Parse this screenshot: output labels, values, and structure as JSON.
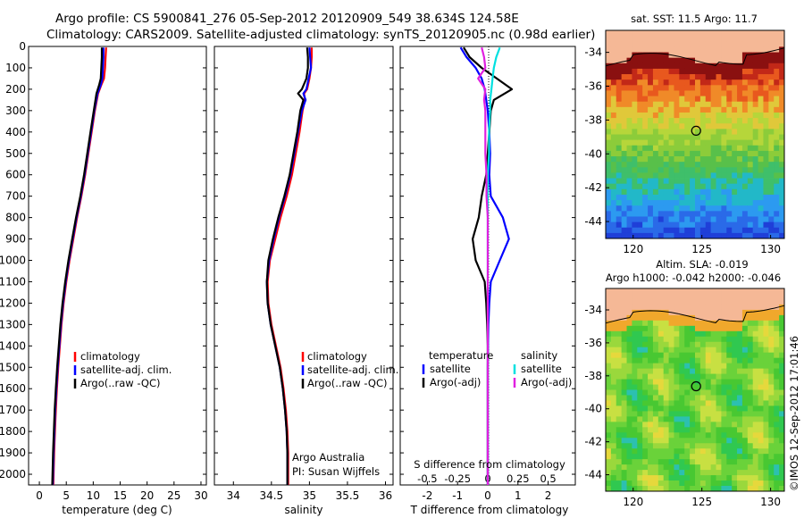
{
  "header": {
    "line1": "Argo profile: CS 5900841_276 05-Sep-2012 20120909_549 38.634S 124.58E",
    "line2": "Climatology: CARS2009. Satellite-adjusted climatology: synTS_20120905.nc (0.98d earlier)"
  },
  "colors": {
    "climatology": "#ff0000",
    "satellite": "#0000ff",
    "argo": "#000000",
    "sat_salinity": "#00e0e0",
    "argo_salinity": "#e020e0",
    "land": "#f5b896"
  },
  "chart_data": [
    {
      "type": "line",
      "id": "temperature",
      "xlabel": "temperature (deg C)",
      "ylabel": "",
      "xlim": [
        -2,
        31
      ],
      "ylim": [
        2050,
        0
      ],
      "xticks": [
        0,
        5,
        10,
        15,
        20,
        25,
        30
      ],
      "xtick_labels": [
        "0",
        "5",
        "10",
        "15",
        "20",
        "25",
        "30"
      ],
      "yticks": [
        0,
        100,
        200,
        300,
        400,
        500,
        600,
        700,
        800,
        900,
        1000,
        1100,
        1200,
        1300,
        1400,
        1500,
        1600,
        1700,
        1800,
        1900,
        2000
      ],
      "ytick_labels": [
        "0",
        "100",
        "200",
        "300",
        "400",
        "500",
        "600",
        "700",
        "800",
        "900",
        "1000",
        "1100",
        "1200",
        "1300",
        "1400",
        "1500",
        "1600",
        "1700",
        "1800",
        "1900",
        "2000"
      ],
      "depth": [
        5,
        50,
        100,
        150,
        180,
        220,
        300,
        400,
        500,
        600,
        700,
        800,
        900,
        1000,
        1100,
        1200,
        1300,
        1400,
        1500,
        1600,
        1700,
        1800,
        1900,
        2000,
        2050
      ],
      "series": [
        {
          "name": "climatology",
          "color": "#ff0000",
          "values": [
            12.4,
            12.3,
            12.2,
            12.0,
            11.5,
            10.9,
            10.3,
            9.7,
            9.1,
            8.5,
            7.8,
            7.0,
            6.3,
            5.6,
            5.0,
            4.5,
            4.1,
            3.8,
            3.5,
            3.25,
            3.05,
            2.9,
            2.75,
            2.65,
            2.6
          ]
        },
        {
          "name": "satellite-adj. clim.",
          "color": "#0000ff",
          "values": [
            11.9,
            11.9,
            11.8,
            11.7,
            11.4,
            10.8,
            10.2,
            9.6,
            9.0,
            8.4,
            7.7,
            6.9,
            6.2,
            5.5,
            4.9,
            4.4,
            4.0,
            3.7,
            3.4,
            3.15,
            2.95,
            2.8,
            2.65,
            2.55,
            2.5
          ]
        },
        {
          "name": "Argo(..raw -QC)",
          "color": "#000000",
          "values": [
            11.6,
            11.6,
            11.5,
            11.4,
            11.1,
            10.6,
            10.1,
            9.5,
            8.9,
            8.3,
            7.6,
            6.8,
            6.1,
            5.4,
            4.8,
            4.3,
            3.9,
            3.6,
            3.3,
            3.05,
            2.85,
            2.7,
            2.55,
            2.45,
            2.4
          ]
        }
      ],
      "legend": [
        "climatology",
        "satellite-adj. clim.",
        "Argo(..raw -QC)"
      ]
    },
    {
      "type": "line",
      "id": "salinity",
      "xlabel": "salinity",
      "xlim": [
        33.75,
        36.1
      ],
      "ylim": [
        2050,
        0
      ],
      "xticks": [
        34,
        34.5,
        35,
        35.5,
        36
      ],
      "xtick_labels": [
        "34",
        "34.5",
        "35",
        "35.5",
        "36"
      ],
      "depth": [
        5,
        50,
        100,
        150,
        200,
        220,
        250,
        300,
        400,
        500,
        600,
        700,
        800,
        900,
        1000,
        1100,
        1200,
        1300,
        1400,
        1500,
        1600,
        1700,
        1800,
        1900,
        2000,
        2050
      ],
      "series": [
        {
          "name": "climatology",
          "color": "#ff0000",
          "values": [
            35.03,
            35.03,
            35.02,
            35.0,
            34.97,
            34.93,
            34.94,
            34.91,
            34.87,
            34.82,
            34.77,
            34.7,
            34.62,
            34.55,
            34.48,
            34.45,
            34.46,
            34.5,
            34.56,
            34.62,
            34.66,
            34.69,
            34.71,
            34.72,
            34.72,
            34.72
          ]
        },
        {
          "name": "satellite-adj. clim.",
          "color": "#0000ff",
          "values": [
            35.0,
            35.01,
            35.02,
            34.99,
            34.96,
            34.92,
            34.95,
            34.9,
            34.85,
            34.8,
            34.75,
            34.68,
            34.6,
            34.53,
            34.47,
            34.44,
            34.45,
            34.49,
            34.55,
            34.61,
            34.65,
            34.68,
            34.7,
            34.71,
            34.71,
            34.71
          ]
        },
        {
          "name": "Argo(..raw -QC)",
          "color": "#000000",
          "values": [
            34.97,
            34.98,
            34.98,
            34.96,
            34.9,
            34.85,
            34.92,
            34.88,
            34.84,
            34.79,
            34.74,
            34.67,
            34.59,
            34.52,
            34.46,
            34.44,
            34.45,
            34.49,
            34.55,
            34.61,
            34.65,
            34.68,
            34.7,
            34.71,
            34.71,
            34.71
          ]
        }
      ],
      "legend": [
        "climatology",
        "satellite-adj. clim.",
        "Argo(..raw -QC)"
      ],
      "annotation": [
        "Argo Australia",
        "PI: Susan Wijffels"
      ]
    },
    {
      "type": "line",
      "id": "difference",
      "xlabel": "T difference from climatology",
      "xlabel_top": "S difference from climatology",
      "xlim": [
        -2.9,
        2.9
      ],
      "ylim": [
        2050,
        0
      ],
      "xticks": [
        -2,
        -1,
        0,
        1,
        2
      ],
      "xtick_labels": [
        "-2",
        "-1",
        "0",
        "1",
        "2"
      ],
      "top_ticks_labels": [
        "-0.5",
        "-0.25",
        "0",
        "0.25",
        "0.5"
      ],
      "top_ticks_values": [
        -0.5,
        -0.25,
        0,
        0.25,
        0.5
      ],
      "s_scale_factor": 4,
      "depth": [
        5,
        50,
        100,
        150,
        200,
        250,
        300,
        400,
        500,
        600,
        700,
        800,
        900,
        1000,
        1100,
        1200,
        1300,
        1400,
        1500,
        1600,
        1700,
        1800,
        1900,
        2000,
        2050
      ],
      "series": [
        {
          "name": "temperature satellite",
          "color": "#0000ff",
          "values": [
            -0.9,
            -0.7,
            -0.4,
            -0.2,
            -0.1,
            -0.05,
            0,
            0.05,
            0.08,
            0.05,
            0.1,
            0.5,
            0.7,
            0.4,
            0.1,
            0.05,
            0.02,
            0.01,
            0.0,
            0.0,
            0.0,
            0.0,
            0.0,
            0.0,
            0.0
          ]
        },
        {
          "name": "temperature Argo(-adj)",
          "color": "#000000",
          "values": [
            -0.8,
            -0.6,
            -0.2,
            0.3,
            0.8,
            0.2,
            0.1,
            0.05,
            0.0,
            -0.05,
            -0.2,
            -0.3,
            -0.5,
            -0.4,
            -0.1,
            -0.05,
            -0.02,
            0.0,
            0.0,
            0.0,
            0.0,
            0.0,
            0.0,
            0.0,
            0.0
          ]
        },
        {
          "name": "salinity satellite",
          "color": "#00e0e0",
          "values": [
            0.1,
            0.07,
            0.05,
            0.04,
            0.03,
            0.02,
            0.02,
            0.01,
            0.01,
            0.0,
            0.0,
            0.0,
            0.0,
            0.0,
            0.0,
            0.0,
            0.0,
            0.0,
            0.0,
            0.0,
            0.0,
            0.0,
            0.0,
            0.0,
            0.0
          ]
        },
        {
          "name": "salinity Argo(-adj)",
          "color": "#e020e0",
          "values": [
            -0.05,
            -0.03,
            -0.02,
            -0.08,
            -0.02,
            -0.03,
            -0.02,
            -0.02,
            -0.02,
            -0.01,
            -0.01,
            0.0,
            0.0,
            0.0,
            0.0,
            0.0,
            0.0,
            0.0,
            0.0,
            0.0,
            0.0,
            0.0,
            0.0,
            0.0,
            0.0
          ]
        }
      ],
      "legend_headers": [
        "temperature",
        "salinity"
      ],
      "legend": [
        "satellite",
        "Argo(-adj)",
        "satellite",
        "Argo(-adj)"
      ]
    },
    {
      "type": "heatmap",
      "id": "sst_map",
      "title": "sat. SST: 11.5  Argo: 11.7",
      "xlim": [
        118,
        131
      ],
      "ylim": [
        -45,
        -32.7
      ],
      "xticks": [
        120,
        125,
        130
      ],
      "xtick_labels": [
        "120",
        "125",
        "130"
      ],
      "yticks": [
        -34,
        -36,
        -38,
        -40,
        -42,
        -44
      ],
      "ytick_labels": [
        "-34",
        "-36",
        "-38",
        "-40",
        "-42",
        "-44"
      ],
      "float_position": [
        124.58,
        -38.634
      ]
    },
    {
      "type": "heatmap",
      "id": "sla_map",
      "title": "Altim. SLA: -0.019",
      "subtitle": "Argo h1000: -0.042 h2000: -0.046",
      "xlim": [
        118,
        131
      ],
      "ylim": [
        -45,
        -32.7
      ],
      "xticks": [
        120,
        125,
        130
      ],
      "xtick_labels": [
        "120",
        "125",
        "130"
      ],
      "yticks": [
        -34,
        -36,
        -38,
        -40,
        -42,
        -44
      ],
      "ytick_labels": [
        "-34",
        "-36",
        "-38",
        "-40",
        "-42",
        "-44"
      ],
      "float_position": [
        124.58,
        -38.634
      ]
    }
  ],
  "footer": {
    "side_stamp": "©IMOS 12-Sep-2012 17:01:46"
  }
}
